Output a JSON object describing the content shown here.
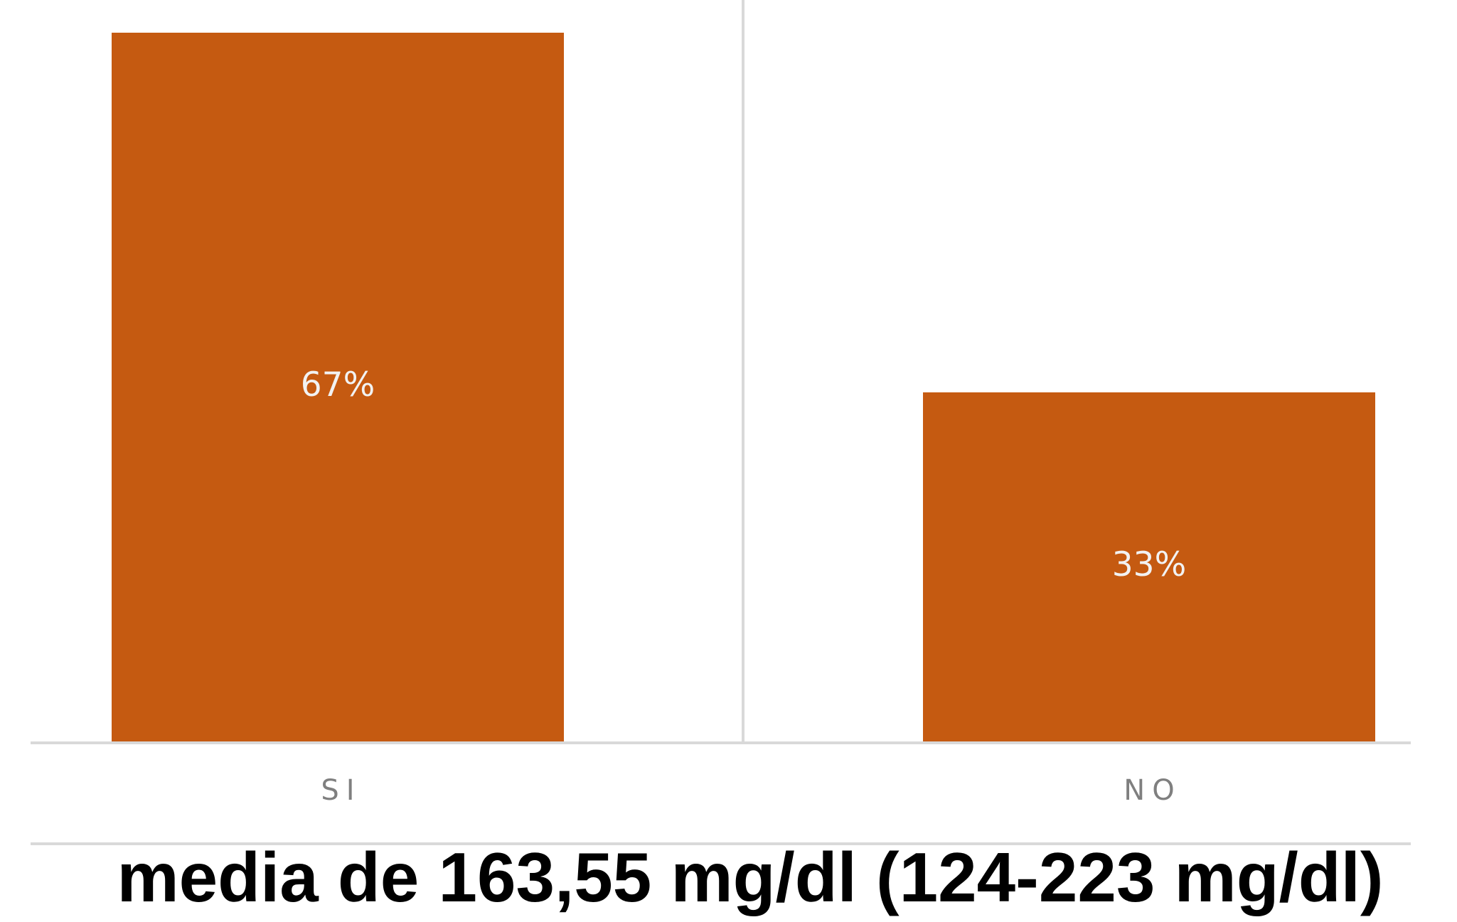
{
  "chart_data": {
    "type": "bar",
    "categories": [
      "SI",
      "NO"
    ],
    "values": [
      67,
      33
    ],
    "value_labels": [
      "67%",
      "33%"
    ],
    "color": "#c55a11",
    "note": "media de 163,55 mg/dl (124-223 mg/dl)"
  }
}
